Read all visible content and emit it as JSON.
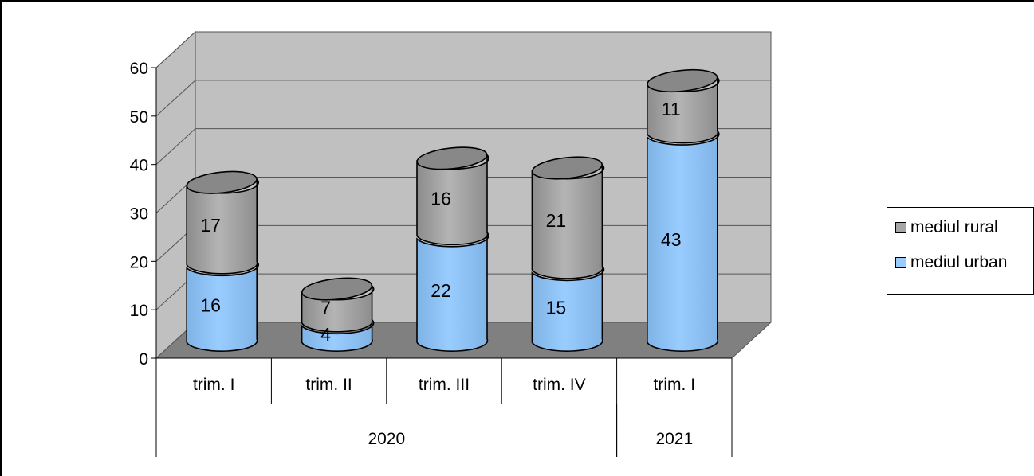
{
  "chart_data": {
    "type": "bar",
    "style": "stacked-3d-cylinder",
    "title": "",
    "xlabel": "",
    "ylabel": "",
    "ylim": [
      0,
      60
    ],
    "yticks": [
      0,
      10,
      20,
      30,
      40,
      50,
      60
    ],
    "grid": true,
    "legend_position": "right",
    "categories": [
      "trim. I",
      "trim. II",
      "trim. III",
      "trim. IV",
      "trim. I"
    ],
    "groups": [
      {
        "label": "2020",
        "count": 4
      },
      {
        "label": "2021",
        "count": 1
      }
    ],
    "series": [
      {
        "name": "mediul urban",
        "values": [
          16,
          4,
          22,
          15,
          43
        ],
        "color": "#99ccff"
      },
      {
        "name": "mediul rural",
        "values": [
          17,
          7,
          16,
          21,
          11
        ],
        "color": "#a6a6a6"
      }
    ],
    "colors": {
      "wall": "#c0c0c0",
      "floor": "#808080",
      "urban": "#99ccff",
      "rural": "#a6a6a6"
    }
  }
}
